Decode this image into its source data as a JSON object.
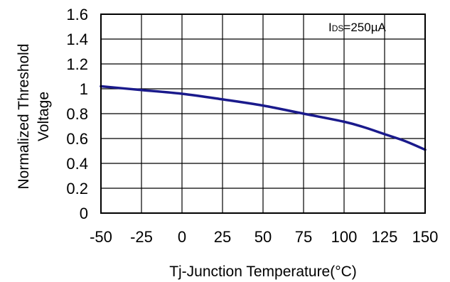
{
  "chart_data": {
    "type": "line",
    "xlabel": "Tj-Junction Temperature(°C)",
    "ylabel_lines": [
      "Normalized Threshold",
      "Voltage"
    ],
    "annotation": {
      "prefix": "I",
      "sub": "DS",
      "suffix": "=250µA",
      "placement": "top-right"
    },
    "x_ticks": [
      -50,
      -25,
      0,
      25,
      50,
      75,
      100,
      125,
      150
    ],
    "y_ticks": [
      0,
      0.2,
      0.4,
      0.6,
      0.8,
      1,
      1.2,
      1.4,
      1.6
    ],
    "x_tick_labels": [
      "-50",
      "-25",
      "0",
      "25",
      "50",
      "75",
      "100",
      "125",
      "150"
    ],
    "y_tick_labels": [
      "0",
      "0.2",
      "0.4",
      "0.6",
      "0.8",
      "1",
      "1.2",
      "1.4",
      "1.6"
    ],
    "xlim": [
      -50,
      150
    ],
    "ylim": [
      0,
      1.6
    ],
    "grid": true,
    "legend": "none",
    "series": [
      {
        "color": "#1a1a8c",
        "x": [
          -50,
          -25,
          0,
          25,
          50,
          75,
          100,
          112.5,
          125,
          137.5,
          150
        ],
        "y": [
          1.02,
          0.99,
          0.96,
          0.915,
          0.865,
          0.8,
          0.735,
          0.69,
          0.635,
          0.58,
          0.51
        ]
      }
    ]
  }
}
